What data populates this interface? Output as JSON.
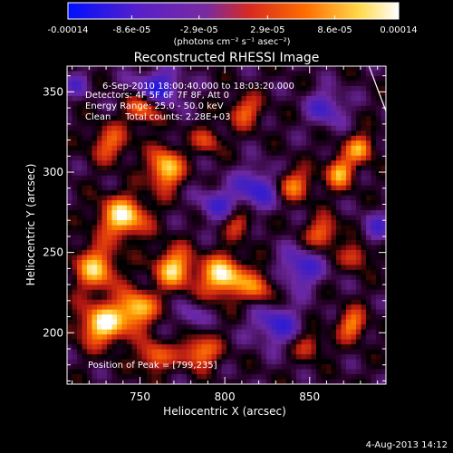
{
  "colorbar": {
    "tick_labels": [
      "-0.00014",
      "-8.6e-05",
      "-2.9e-05",
      "2.9e-05",
      "8.6e-05",
      "0.00014"
    ],
    "tick_values": [
      -0.00014,
      -8.6e-05,
      -2.9e-05,
      2.9e-05,
      8.6e-05,
      0.00014
    ],
    "range": [
      -0.00014,
      0.00014
    ],
    "unit_label": "(photons cm⁻² s⁻¹ asec⁻²)",
    "colors": [
      "#0010ff",
      "#5a20c8",
      "#7a2aa0",
      "#d82a20",
      "#ff6e00",
      "#ffd84a",
      "#ffffff"
    ]
  },
  "chart_data": {
    "type": "heatmap",
    "title": "Reconstructed RHESSI Image",
    "xlabel": "Heliocentric X (arcsec)",
    "ylabel": "Heliocentric Y (arcsec)",
    "xlim": [
      707,
      895
    ],
    "ylim": [
      168,
      366
    ],
    "x_ticks": [
      750,
      800,
      850
    ],
    "y_ticks": [
      200,
      250,
      300,
      350
    ],
    "info_lines": [
      "6-Sep-2010 18:00:40.000 to 18:03:20.000",
      "Detectors: 4F 5F 6F 7F 8F, Att 0",
      "Energy Range: 25.0 - 50.0 keV",
      "Clean     Total counts: 2.28E+03"
    ],
    "peak_label": "Position of Peak = [799,235]",
    "peak_position": [
      799,
      235
    ],
    "blobs": [
      {
        "x": 799,
        "y": 235,
        "amp": 1.0,
        "sx": 9,
        "sy": 9
      },
      {
        "x": 770,
        "y": 240,
        "amp": 0.85,
        "sx": 8,
        "sy": 9
      },
      {
        "x": 740,
        "y": 272,
        "amp": 0.95,
        "sx": 10,
        "sy": 9
      },
      {
        "x": 724,
        "y": 240,
        "amp": 0.8,
        "sx": 9,
        "sy": 10
      },
      {
        "x": 728,
        "y": 205,
        "amp": 0.95,
        "sx": 10,
        "sy": 9
      },
      {
        "x": 748,
        "y": 215,
        "amp": 0.85,
        "sx": 8,
        "sy": 8
      },
      {
        "x": 765,
        "y": 302,
        "amp": 0.9,
        "sx": 7,
        "sy": 9
      },
      {
        "x": 752,
        "y": 340,
        "amp": 0.7,
        "sx": 7,
        "sy": 7
      },
      {
        "x": 732,
        "y": 318,
        "amp": 0.55,
        "sx": 8,
        "sy": 8
      },
      {
        "x": 785,
        "y": 188,
        "amp": 0.7,
        "sx": 8,
        "sy": 7
      },
      {
        "x": 758,
        "y": 185,
        "amp": 0.6,
        "sx": 7,
        "sy": 7
      },
      {
        "x": 820,
        "y": 228,
        "amp": 0.55,
        "sx": 7,
        "sy": 7
      },
      {
        "x": 812,
        "y": 338,
        "amp": 0.55,
        "sx": 7,
        "sy": 7
      },
      {
        "x": 840,
        "y": 292,
        "amp": 0.65,
        "sx": 8,
        "sy": 7
      },
      {
        "x": 868,
        "y": 300,
        "amp": 0.75,
        "sx": 6,
        "sy": 7
      },
      {
        "x": 880,
        "y": 315,
        "amp": 0.7,
        "sx": 6,
        "sy": 6
      },
      {
        "x": 858,
        "y": 262,
        "amp": 0.6,
        "sx": 7,
        "sy": 7
      },
      {
        "x": 878,
        "y": 248,
        "amp": 0.5,
        "sx": 6,
        "sy": 6
      },
      {
        "x": 875,
        "y": 205,
        "amp": 0.65,
        "sx": 6,
        "sy": 7
      },
      {
        "x": 850,
        "y": 192,
        "amp": 0.45,
        "sx": 6,
        "sy": 6
      },
      {
        "x": 808,
        "y": 268,
        "amp": 0.45,
        "sx": 6,
        "sy": 6
      },
      {
        "x": 790,
        "y": 320,
        "amp": 0.45,
        "sx": 6,
        "sy": 6
      },
      {
        "x": 760,
        "y": 352,
        "amp": -0.7,
        "sx": 10,
        "sy": 8
      },
      {
        "x": 820,
        "y": 290,
        "amp": -0.6,
        "sx": 10,
        "sy": 9
      },
      {
        "x": 845,
        "y": 240,
        "amp": -0.55,
        "sx": 9,
        "sy": 9
      },
      {
        "x": 830,
        "y": 205,
        "amp": -0.55,
        "sx": 10,
        "sy": 9
      },
      {
        "x": 795,
        "y": 280,
        "amp": -0.45,
        "sx": 8,
        "sy": 8
      },
      {
        "x": 860,
        "y": 340,
        "amp": -0.5,
        "sx": 8,
        "sy": 8
      },
      {
        "x": 890,
        "y": 265,
        "amp": -0.4,
        "sx": 7,
        "sy": 7
      },
      {
        "x": 780,
        "y": 210,
        "amp": -0.35,
        "sx": 6,
        "sy": 6
      },
      {
        "x": 712,
        "y": 355,
        "amp": -0.35,
        "sx": 6,
        "sy": 6
      }
    ],
    "limb_line": [
      [
        885,
        366
      ],
      [
        895,
        338
      ]
    ]
  },
  "footer": {
    "date": "4-Aug-2013 14:12"
  }
}
